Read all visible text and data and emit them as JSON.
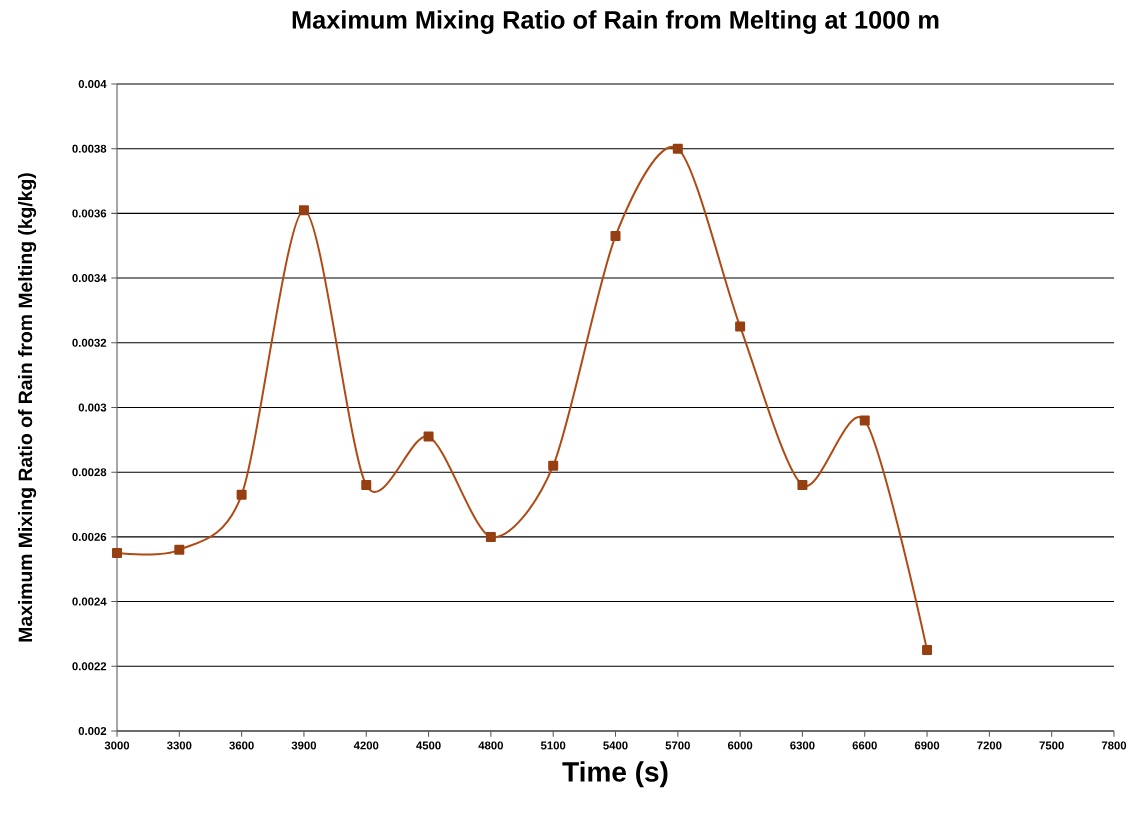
{
  "chart_data": {
    "type": "line",
    "title": "Maximum Mixing Ratio of Rain from Melting at 1000 m",
    "xlabel": "Time (s)",
    "ylabel": "Maximum Mixing Ratio of Rain from Melting (kg/kg)",
    "x": [
      3000,
      3300,
      3600,
      3900,
      4200,
      4500,
      4800,
      5100,
      5400,
      5700,
      6000,
      6300,
      6600,
      6900
    ],
    "values": [
      0.00255,
      0.00256,
      0.00273,
      0.00361,
      0.00276,
      0.00291,
      0.0026,
      0.00282,
      0.00353,
      0.0038,
      0.00325,
      0.00276,
      0.00296,
      0.00225
    ],
    "color": "#b04a14",
    "marker": "square",
    "line_style": "solid",
    "grid": "y",
    "xlim": [
      3000,
      7800
    ],
    "ylim": [
      0.002,
      0.004
    ],
    "xticks": [
      3000,
      3300,
      3600,
      3900,
      4200,
      4500,
      4800,
      5100,
      5400,
      5700,
      6000,
      6300,
      6600,
      6900,
      7200,
      7500,
      7800
    ],
    "yticks": [
      0.002,
      0.0022,
      0.0024,
      0.0026,
      0.0028,
      0.003,
      0.0032,
      0.0034,
      0.0036,
      0.0038,
      0.004
    ]
  }
}
